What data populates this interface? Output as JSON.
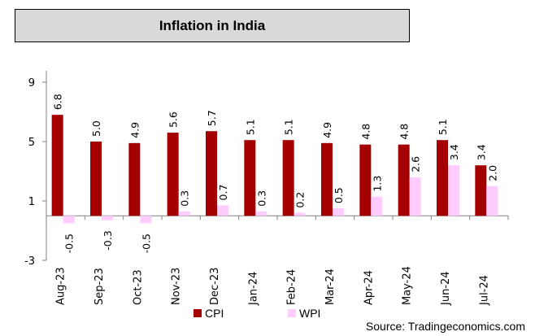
{
  "chart_data": {
    "type": "bar",
    "title": "Inflation in India",
    "xlabel": "",
    "ylabel": "",
    "categories": [
      "Aug-23",
      "Sep-23",
      "Oct-23",
      "Nov-23",
      "Dec-23",
      "Jan-24",
      "Feb-24",
      "Mar-24",
      "Apr-24",
      "May-24",
      "Jun-24",
      "Jul-24"
    ],
    "series": [
      {
        "name": "CPI",
        "color": "#a50000",
        "values": [
          6.8,
          5.0,
          4.9,
          5.6,
          5.7,
          5.1,
          5.1,
          4.9,
          4.8,
          4.8,
          5.1,
          3.4
        ]
      },
      {
        "name": "WPI",
        "color": "#ffccff",
        "values": [
          -0.5,
          -0.3,
          -0.5,
          0.3,
          0.7,
          0.3,
          0.2,
          0.5,
          1.3,
          2.6,
          3.4,
          2.0
        ]
      }
    ],
    "ylim": [
      -3,
      9
    ],
    "yticks": [
      -3,
      1,
      5,
      9
    ],
    "grid": false,
    "legend_position": "bottom",
    "source": "Source: Tradingeconomics.com"
  }
}
